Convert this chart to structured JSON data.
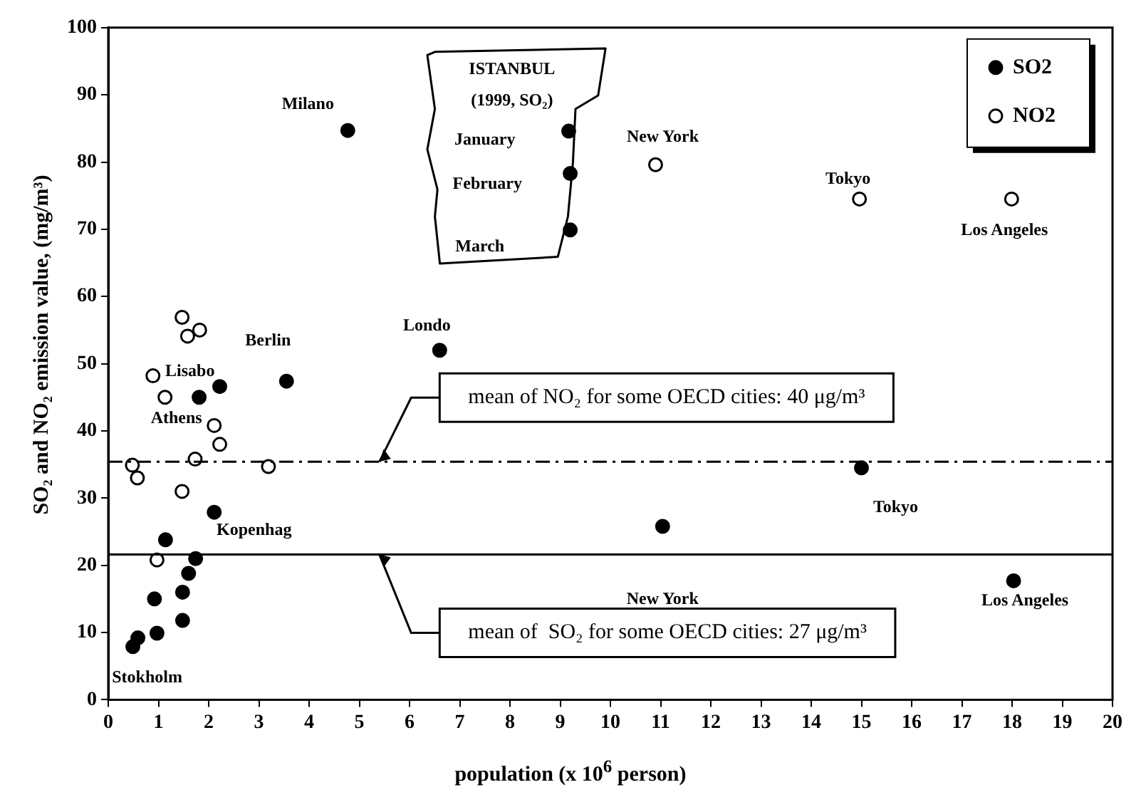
{
  "chart_data": {
    "type": "scatter",
    "xlabel": "population (x 10$^{6}$ person)",
    "ylabel": "SO₂ and NO₂ emission value, (mg/m³)",
    "xlim": [
      0,
      20
    ],
    "xticks": [
      0,
      1,
      2,
      3,
      4,
      5,
      6,
      7,
      8,
      9,
      10,
      11,
      12,
      13,
      14,
      15,
      16,
      17,
      18,
      19,
      20
    ],
    "ylim": [
      0,
      100
    ],
    "yticks": [
      0,
      10,
      20,
      30,
      40,
      50,
      60,
      70,
      80,
      90,
      100
    ],
    "grid": false,
    "legend": "top right",
    "marker": "circle",
    "series": [
      {
        "name": "SO2",
        "color": "#000000",
        "x": [
          4.77,
          9.17,
          9.2,
          9.2,
          6.6,
          3.55,
          2.22,
          1.81,
          2.11,
          1.14,
          1.74,
          1.6,
          1.48,
          0.92,
          1.48,
          0.97,
          0.59,
          0.49,
          15.0,
          11.04,
          18.03
        ],
        "values": [
          84.7,
          84.6,
          78.3,
          69.9,
          52,
          47.4,
          46.6,
          45,
          27.9,
          23.8,
          21,
          18.8,
          16,
          15,
          11.8,
          9.9,
          9.2,
          7.9,
          34.5,
          25.8,
          17.7
        ]
      },
      {
        "name": "NO2",
        "color": "#000000",
        "x": [
          1.47,
          1.58,
          1.82,
          0.89,
          1.13,
          2.11,
          2.22,
          1.73,
          0.48,
          0.58,
          3.19,
          1.47,
          0.97,
          10.9,
          14.96,
          17.99
        ],
        "values": [
          56.9,
          54.1,
          55,
          48.2,
          45,
          40.8,
          38,
          35.8,
          34.9,
          33,
          34.7,
          31,
          20.8,
          79.6,
          74.5,
          74.5
        ]
      }
    ],
    "ref_lines": [
      {
        "axis": "y",
        "value": 35.4,
        "line_style": "dashed",
        "color": "#000000"
      },
      {
        "axis": "y",
        "value": 21.6,
        "line_style": "solid",
        "color": "#000000"
      }
    ],
    "annotations": [
      "ISTANBUL",
      "(1999, SO₂)",
      "mean of NO₂ for some OECD cities: 40 μg/m³",
      "mean of  SO₂ for some OECD cities: 27 μg/m³",
      "January",
      "February",
      "March",
      "New York",
      {
        "text": "Milano",
        "x": 4.77,
        "y": 84.7
      },
      {
        "text": "New York",
        "x": 10.9,
        "y": 79.6
      },
      {
        "text": "Tokyo",
        "x": 14.96,
        "y": 74.5
      },
      {
        "text": "Los Angeles",
        "x": 17.99,
        "y": 74.5
      },
      {
        "text": "Londo",
        "x": 6.6,
        "y": 52
      },
      {
        "text": "Berlin",
        "x": 3.55,
        "y": 47.4
      },
      {
        "text": "Lisabo",
        "x": 0.89,
        "y": 48.2
      },
      {
        "text": "Athens",
        "x": 1.13,
        "y": 45
      },
      {
        "text": "Kopenhag",
        "x": 2.11,
        "y": 27.9
      },
      {
        "text": "Stokholm",
        "x": 0.49,
        "y": 7.9
      },
      {
        "text": "Tokyo",
        "x": 15.0,
        "y": 34.5
      },
      {
        "text": "Los Angeles",
        "x": 18.03,
        "y": 17.7
      }
    ]
  }
}
